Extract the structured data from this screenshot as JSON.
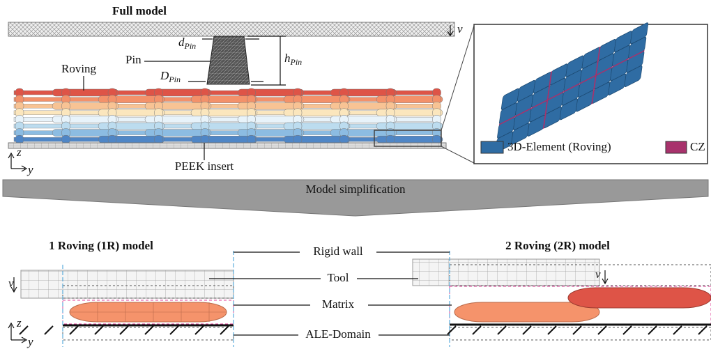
{
  "top": {
    "title": "Full model",
    "velocity": "v",
    "pin": "Pin",
    "pin_diameter_top": {
      "symbol": "d",
      "subscript": "Pin"
    },
    "pin_height": {
      "symbol": "h",
      "subscript": "Pin"
    },
    "pin_diameter_bottom": {
      "symbol": "D",
      "subscript": "Pin"
    },
    "roving": "Roving",
    "insert": "PEEK insert",
    "axes": {
      "z": "z",
      "y": "y"
    }
  },
  "legend": {
    "items": [
      {
        "label": "3D-Element (Roving)",
        "color": "#2f6ca3"
      },
      {
        "label": "CZ",
        "color": "#a8326c"
      }
    ]
  },
  "banner": "Model simplification",
  "bottom": {
    "left_title": "1 Roving (1R) model",
    "right_title": "2 Roving (2R) model",
    "labels": [
      "Rigid wall",
      "Tool",
      "Matrix",
      "ALE-Domain"
    ],
    "velocity_left": "v",
    "velocity_right": "v",
    "axes": {
      "z": "z",
      "y": "y"
    }
  }
}
